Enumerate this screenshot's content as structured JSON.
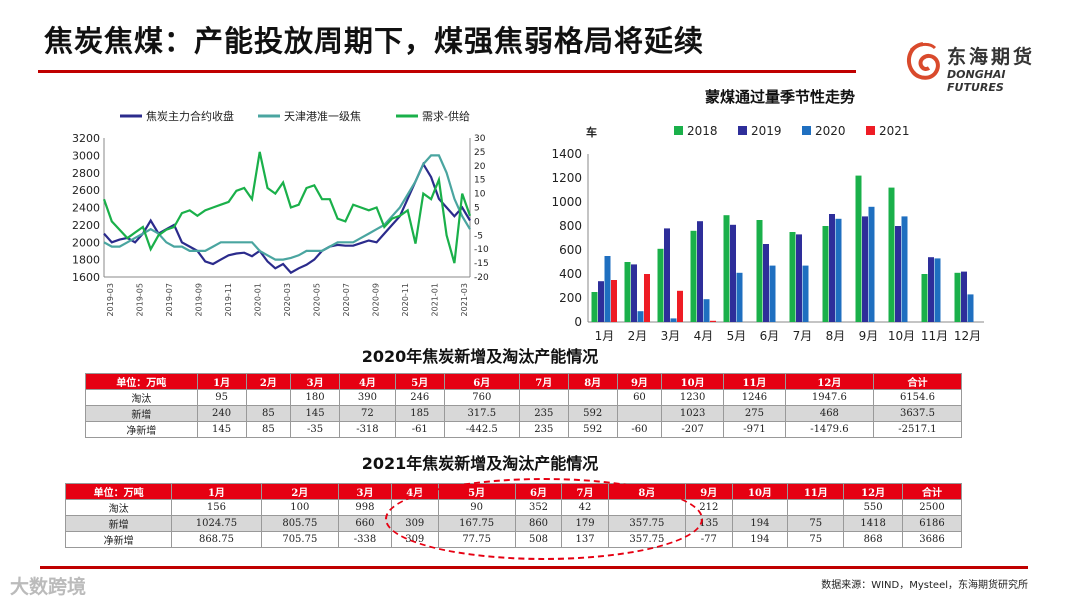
{
  "page": {
    "title": "焦炭焦煤：产能投放周期下，煤强焦弱格局将延续",
    "logo_cn": "东海期货",
    "logo_en": "DONGHAI FUTURES",
    "source": "数据来源：WIND，Mysteel，东海期货研究所",
    "watermark": "大数跨境"
  },
  "chart_data": [
    {
      "type": "line",
      "legend": [
        "焦炭主力合约收盘",
        "天津港准一级焦",
        "需求-供给"
      ],
      "colors": [
        "#2b2b8c",
        "#4aa5a0",
        "#1ab04a"
      ],
      "x_ticks": [
        "2019-03",
        "2019-05",
        "2019-07",
        "2019-09",
        "2019-11",
        "2020-01",
        "2020-03",
        "2020-05",
        "2020-07",
        "2020-09",
        "2020-11",
        "2021-01",
        "2021-03"
      ],
      "y_left": {
        "min": 1600,
        "max": 3200,
        "ticks": [
          1600,
          1800,
          2000,
          2200,
          2400,
          2600,
          2800,
          3000,
          3200
        ]
      },
      "y_right": {
        "min": -20,
        "max": 30,
        "ticks": [
          -20,
          -15,
          -10,
          -5,
          0,
          5,
          10,
          15,
          20,
          25,
          30
        ]
      },
      "series": [
        {
          "name": "焦炭主力合约收盘",
          "axis": "left",
          "values": [
            2100,
            2000,
            2030,
            2050,
            2000,
            2100,
            2250,
            2100,
            2150,
            2200,
            2000,
            1950,
            1900,
            1780,
            1750,
            1800,
            1850,
            1870,
            1880,
            1840,
            1900,
            1780,
            1700,
            1750,
            1650,
            1700,
            1740,
            1800,
            1900,
            1950,
            1970,
            1960,
            1960,
            1990,
            2020,
            2000,
            2100,
            2200,
            2300,
            2500,
            2700,
            2900,
            2750,
            2500,
            2400,
            2300,
            2400,
            2250
          ]
        },
        {
          "name": "天津港准一级焦",
          "axis": "left",
          "values": [
            2000,
            1950,
            1950,
            2000,
            2050,
            2100,
            2150,
            2100,
            2000,
            1950,
            1950,
            1900,
            1900,
            1900,
            1950,
            2000,
            2000,
            2000,
            2000,
            2000,
            1900,
            1850,
            1800,
            1800,
            1820,
            1850,
            1900,
            1900,
            1900,
            1950,
            2000,
            2000,
            2000,
            2050,
            2100,
            2150,
            2200,
            2300,
            2400,
            2550,
            2700,
            2900,
            3000,
            3000,
            2800,
            2500,
            2300,
            2150
          ]
        },
        {
          "name": "需求-供给",
          "axis": "right",
          "values": [
            8,
            0,
            -3,
            -6,
            -4,
            -2,
            -10,
            -5,
            -3,
            -2,
            3,
            4,
            2,
            4,
            5,
            6,
            7,
            11,
            12,
            8,
            25,
            12,
            10,
            14,
            5,
            6,
            12,
            13,
            8,
            8,
            1,
            0,
            6,
            5,
            4,
            5,
            -2,
            1,
            2,
            4,
            -8,
            10,
            8,
            15,
            -5,
            -15,
            10,
            2
          ]
        }
      ]
    },
    {
      "type": "bar",
      "title": "蒙煤通过量季节性走势",
      "ylabel": "车",
      "categories": [
        "1月",
        "2月",
        "3月",
        "4月",
        "5月",
        "6月",
        "7月",
        "8月",
        "9月",
        "10月",
        "11月",
        "12月"
      ],
      "ylim": [
        0,
        1400
      ],
      "y_ticks": [
        0,
        200,
        400,
        600,
        800,
        1000,
        1200,
        1400
      ],
      "series": [
        {
          "name": "2018",
          "color": "#1ab04a",
          "values": [
            250,
            500,
            610,
            760,
            890,
            850,
            750,
            800,
            1220,
            1120,
            400,
            410
          ]
        },
        {
          "name": "2019",
          "color": "#2e2e9a",
          "values": [
            340,
            480,
            780,
            840,
            810,
            650,
            730,
            900,
            880,
            800,
            540,
            420
          ]
        },
        {
          "name": "2020",
          "color": "#1f6fc0",
          "values": [
            550,
            90,
            30,
            190,
            410,
            470,
            470,
            860,
            960,
            880,
            530,
            230
          ]
        },
        {
          "name": "2021",
          "color": "#ee1c25",
          "values": [
            350,
            400,
            260,
            10,
            0,
            0,
            0,
            0,
            0,
            0,
            0,
            0
          ]
        }
      ]
    }
  ],
  "table2020": {
    "title": "2020年焦炭新增及淘汰产能情况",
    "header": [
      "单位：万吨",
      "1月",
      "2月",
      "3月",
      "4月",
      "5月",
      "6月",
      "7月",
      "8月",
      "9月",
      "10月",
      "11月",
      "12月",
      "合计"
    ],
    "rows": [
      [
        "淘汰",
        "95",
        "",
        "180",
        "390",
        "246",
        "760",
        "",
        "",
        "60",
        "1230",
        "1246",
        "1947.6",
        "6154.6"
      ],
      [
        "新增",
        "240",
        "85",
        "145",
        "72",
        "185",
        "317.5",
        "235",
        "592",
        "",
        "1023",
        "275",
        "468",
        "3637.5"
      ],
      [
        "净新增",
        "145",
        "85",
        "-35",
        "-318",
        "-61",
        "-442.5",
        "235",
        "592",
        "-60",
        "-207",
        "-971",
        "-1479.6",
        "-2517.1"
      ]
    ]
  },
  "table2021": {
    "title": "2021年焦炭新增及淘汰产能情况",
    "header": [
      "单位：万吨",
      "1月",
      "2月",
      "3月",
      "4月",
      "5月",
      "6月",
      "7月",
      "8月",
      "9月",
      "10月",
      "11月",
      "12月",
      "合计"
    ],
    "rows": [
      [
        "淘汰",
        "156",
        "100",
        "998",
        "",
        "90",
        "352",
        "42",
        "",
        "212",
        "",
        "",
        "550",
        "2500"
      ],
      [
        "新增",
        "1024.75",
        "805.75",
        "660",
        "309",
        "167.75",
        "860",
        "179",
        "357.75",
        "135",
        "194",
        "75",
        "1418",
        "6186"
      ],
      [
        "净新增",
        "868.75",
        "705.75",
        "-338",
        "309",
        "77.75",
        "508",
        "137",
        "357.75",
        "-77",
        "194",
        "75",
        "868",
        "3686"
      ]
    ]
  }
}
